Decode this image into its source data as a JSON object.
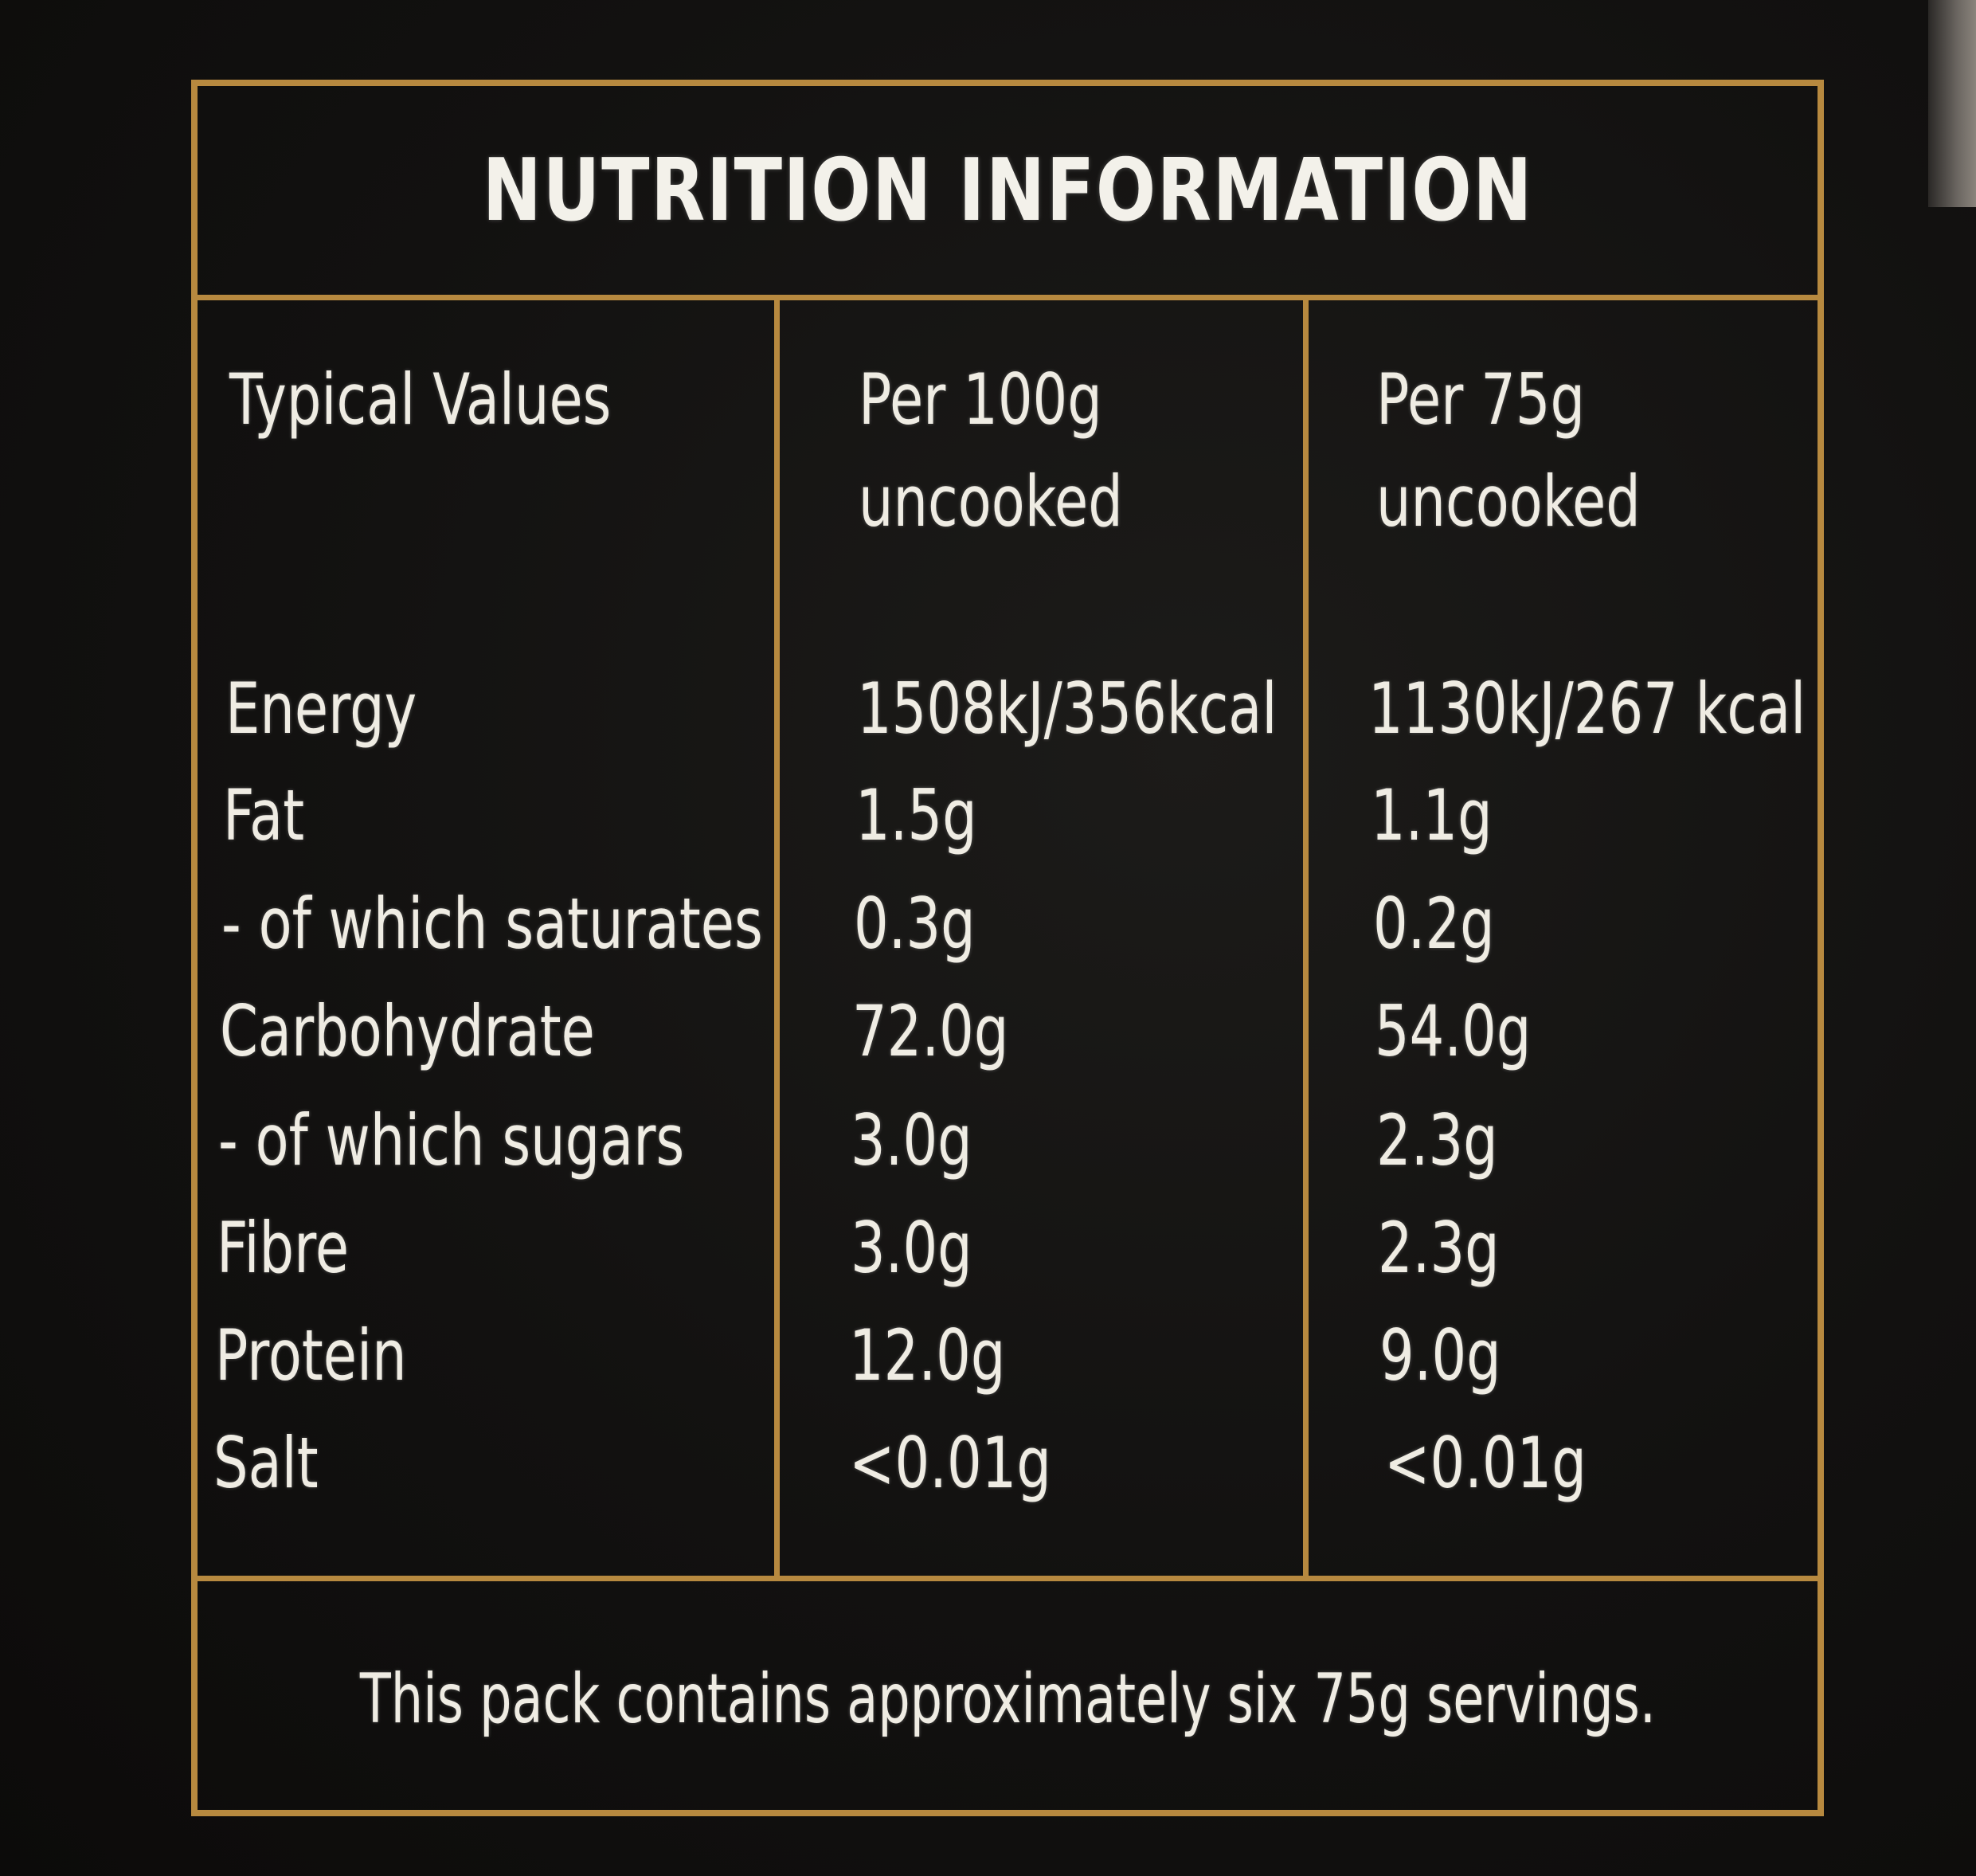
{
  "label": {
    "title": "NUTRITION INFORMATION",
    "headers": {
      "col1": "Typical Values",
      "col2_line1": "Per 100g",
      "col2_line2": "uncooked",
      "col3_line1": "Per 75g",
      "col3_line2": "uncooked"
    },
    "rows": [
      {
        "name": "Energy",
        "per100": "1508kJ/356kcal",
        "per75": "1130kJ/267 kcal"
      },
      {
        "name": "Fat",
        "per100": "1.5g",
        "per75": "1.1g"
      },
      {
        "name": "- of which saturates",
        "per100": "0.3g",
        "per75": "0.2g"
      },
      {
        "name": "Carbohydrate",
        "per100": "72.0g",
        "per75": "54.0g"
      },
      {
        "name": "- of which sugars",
        "per100": "3.0g",
        "per75": "2.3g"
      },
      {
        "name": "Fibre",
        "per100": "3.0g",
        "per75": "2.3g"
      },
      {
        "name": "Protein",
        "per100": "12.0g",
        "per75": "9.0g"
      },
      {
        "name": "Salt",
        "per100": "<0.01g",
        "per75": "<0.01g"
      }
    ],
    "footer": "This pack contains approximately six 75g servings."
  },
  "colors": {
    "background": "#121110",
    "border": "#b7893f",
    "text": "#efece3"
  }
}
